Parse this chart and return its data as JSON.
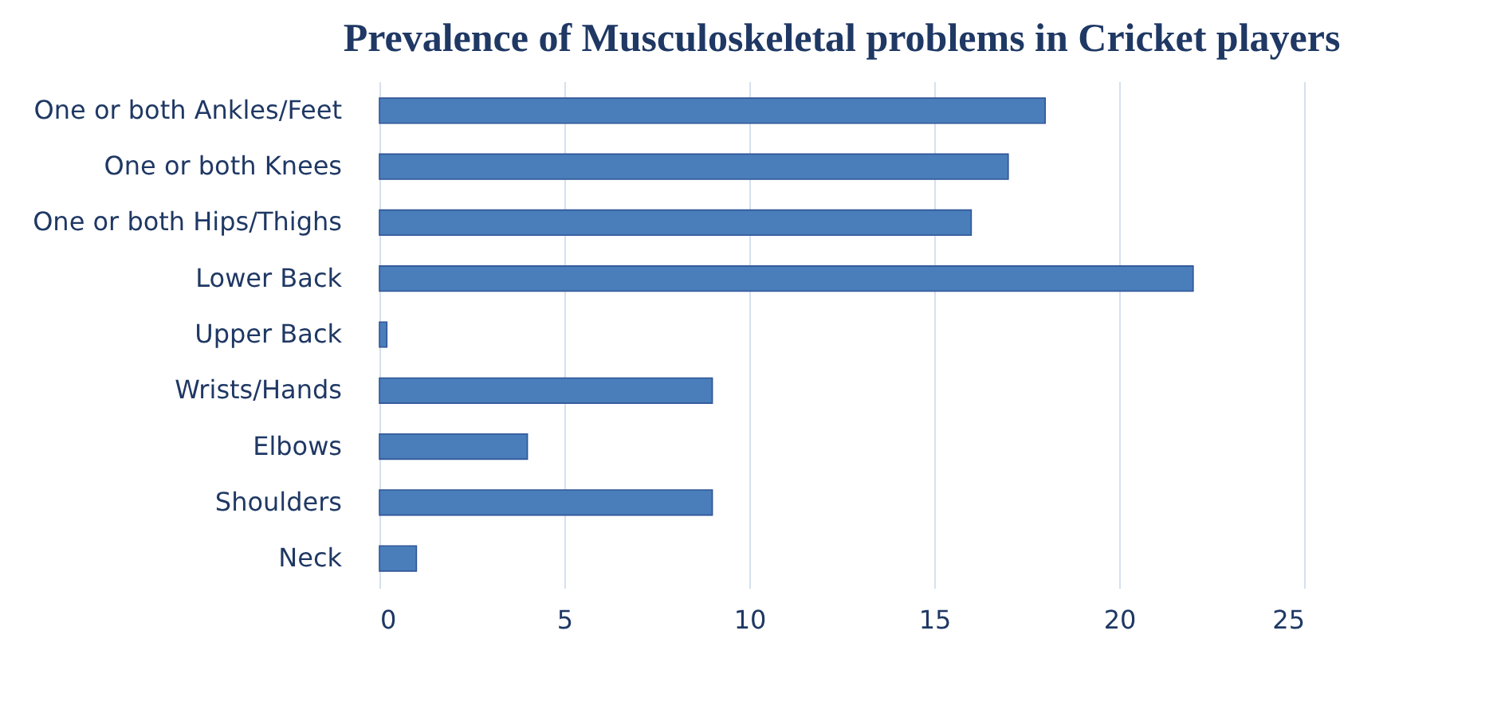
{
  "chart_data": {
    "type": "bar",
    "orientation": "horizontal",
    "title": "Prevalence of Musculoskeletal problems in Cricket players",
    "categories": [
      "One or both Ankles/Feet",
      "One or both Knees",
      "One or both Hips/Thighs",
      "Lower Back",
      "Upper Back",
      "Wrists/Hands",
      "Elbows",
      "Shoulders",
      "Neck"
    ],
    "values": [
      18,
      17,
      16,
      22,
      0.2,
      9,
      4,
      9,
      1
    ],
    "color": "#4a7ebb",
    "xlim": [
      0,
      25
    ],
    "xticks": [
      0,
      5,
      10,
      15,
      20,
      25
    ],
    "grid": "x"
  }
}
